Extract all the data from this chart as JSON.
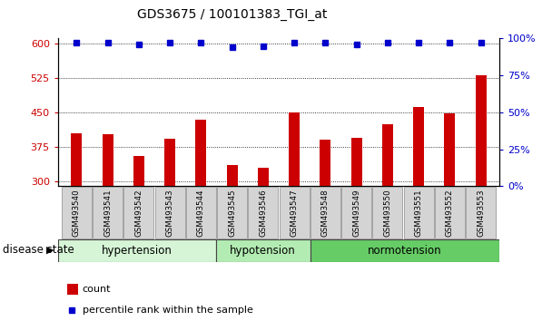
{
  "title": "GDS3675 / 100101383_TGI_at",
  "samples": [
    "GSM493540",
    "GSM493541",
    "GSM493542",
    "GSM493543",
    "GSM493544",
    "GSM493545",
    "GSM493546",
    "GSM493547",
    "GSM493548",
    "GSM493549",
    "GSM493550",
    "GSM493551",
    "GSM493552",
    "GSM493553"
  ],
  "counts": [
    405,
    402,
    355,
    393,
    435,
    335,
    330,
    450,
    390,
    395,
    425,
    462,
    448,
    530
  ],
  "percentile_ranks": [
    97,
    97,
    96,
    97,
    97,
    94,
    95,
    97,
    97,
    96,
    97,
    97,
    97,
    97
  ],
  "groups": [
    {
      "label": "hypertension",
      "start": 0,
      "end": 5,
      "color": "#d6f5d6"
    },
    {
      "label": "hypotension",
      "start": 5,
      "end": 8,
      "color": "#b3ecb3"
    },
    {
      "label": "normotension",
      "start": 8,
      "end": 14,
      "color": "#66cc66"
    }
  ],
  "ylim_left": [
    290,
    610
  ],
  "ylim_right": [
    0,
    100
  ],
  "yticks_left": [
    300,
    375,
    450,
    525,
    600
  ],
  "yticks_right": [
    0,
    25,
    50,
    75,
    100
  ],
  "bar_color": "#cc0000",
  "dot_color": "#0000cc",
  "bar_width": 0.35,
  "background_color": "#ffffff",
  "plot_bg_color": "#ffffff",
  "legend_count_label": "count",
  "legend_percentile_label": "percentile rank within the sample",
  "disease_state_label": "disease state"
}
